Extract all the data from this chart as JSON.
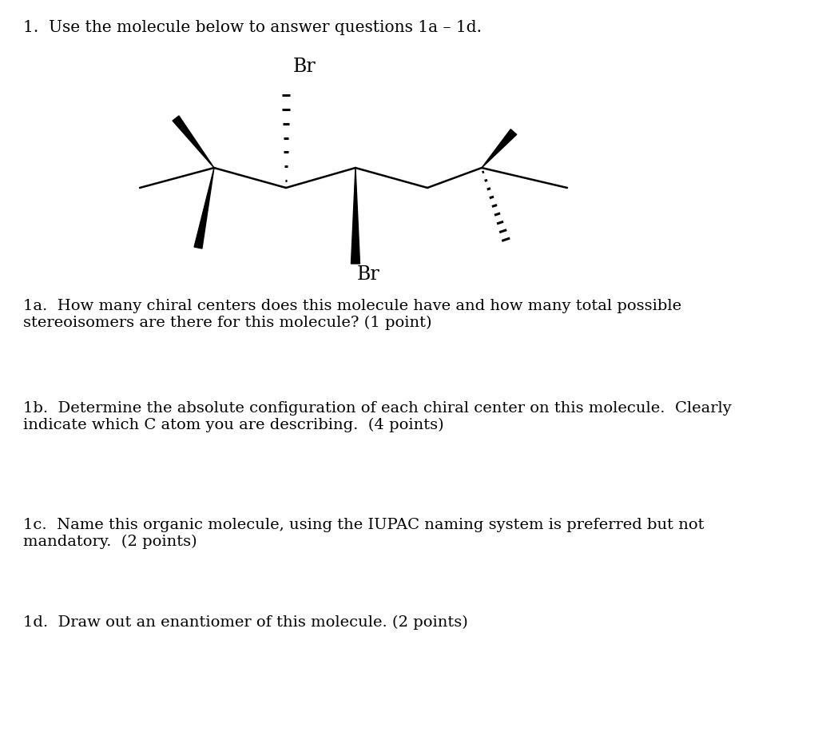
{
  "title_text": "1.  Use the molecule below to answer questions 1a – 1d.",
  "question_1a": "1a.  How many chiral centers does this molecule have and how many total possible\nstereoisomers are there for this molecule? (1 point)",
  "question_1b": "1b.  Determine the absolute configuration of each chiral center on this molecule.  Clearly\nindicate which C atom you are describing.  (4 points)",
  "question_1c": "1c.  Name this organic molecule, using the IUPAC naming system is preferred but not\nmandatory.  (2 points)",
  "question_1d": "1d.  Draw out an enantiomer of this molecule. (2 points)",
  "bg_color": "#ffffff",
  "text_color": "#000000",
  "font_size_title": 14.5,
  "font_size_question": 14,
  "font_size_br": 17
}
